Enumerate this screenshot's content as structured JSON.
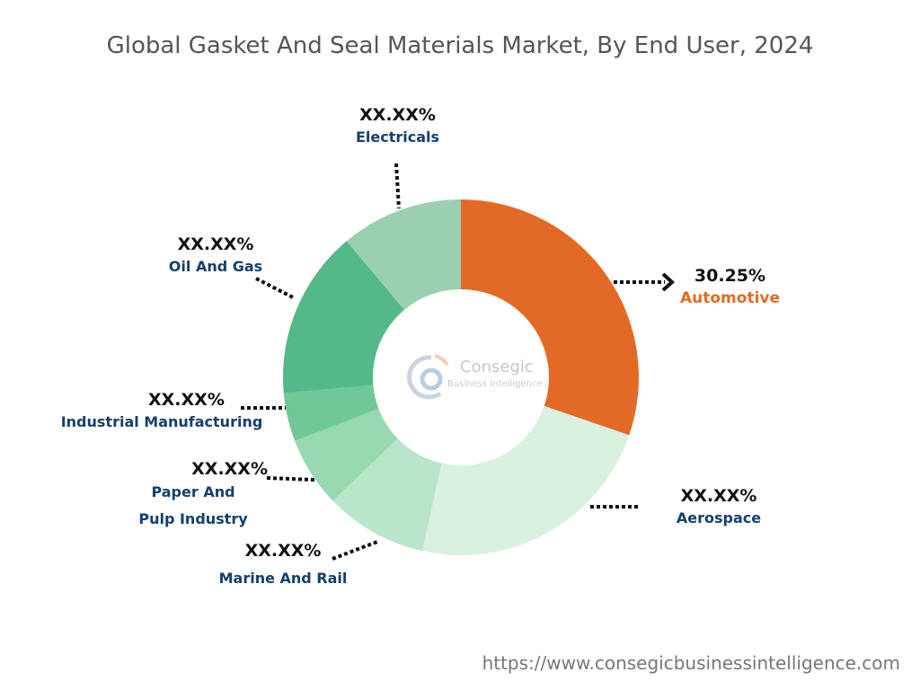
{
  "title": "Global Gasket And Seal Materials Market, By End User, 2024",
  "footer_url": "https://www.consegicbusinessintelligence.com",
  "logo": {
    "name": "Consegic",
    "tagline": "Business Intelligence"
  },
  "chart_data": {
    "type": "pie",
    "donut": true,
    "title": "Global Gasket And Seal Materials Market, By End User, 2024",
    "categories": [
      "Automotive",
      "Aerospace",
      "Marine And Rail",
      "Paper And Pulp Industry",
      "Industrial Manufacturing",
      "Oil And Gas",
      "Electricals"
    ],
    "values": [
      30.25,
      23.2,
      9.3,
      6.4,
      4.4,
      15.3,
      11.1
    ],
    "labels": [
      "30.25%",
      "XX.XX%",
      "XX.XX%",
      "XX.XX%",
      "XX.XX%",
      "XX.XX%",
      "XX.XX%"
    ],
    "colors": [
      "#e36a26",
      "#d9f2df",
      "#b9e6ca",
      "#98d9b1",
      "#70c897",
      "#52b987",
      "#9bcfb2"
    ],
    "legend": "none"
  }
}
